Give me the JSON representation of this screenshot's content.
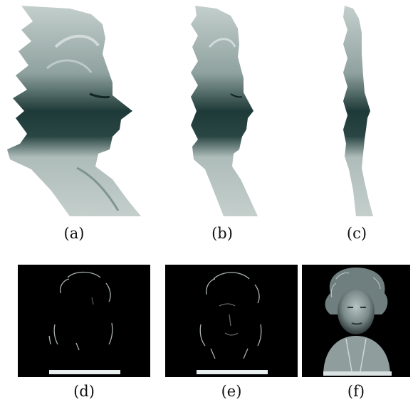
{
  "figure": {
    "panels": [
      {
        "id": "a",
        "caption": "(a)",
        "content": "bust-profile-reconstruction"
      },
      {
        "id": "b",
        "caption": "(b)",
        "content": "bust-profile-reconstruction"
      },
      {
        "id": "c",
        "caption": "(c)",
        "content": "bust-profile-reconstruction-thin"
      },
      {
        "id": "d",
        "caption": "(d)",
        "content": "sparse-edge-render"
      },
      {
        "id": "e",
        "caption": "(e)",
        "content": "sparse-edge-render"
      },
      {
        "id": "f",
        "caption": "(f)",
        "content": "frontal-bust-render"
      }
    ],
    "colors": {
      "bust_light": "#b9c6c3",
      "bust_dark": "#1e3a38",
      "panel_bg_dark": "#000000",
      "edge_highlight": "#dfe6e6"
    }
  }
}
